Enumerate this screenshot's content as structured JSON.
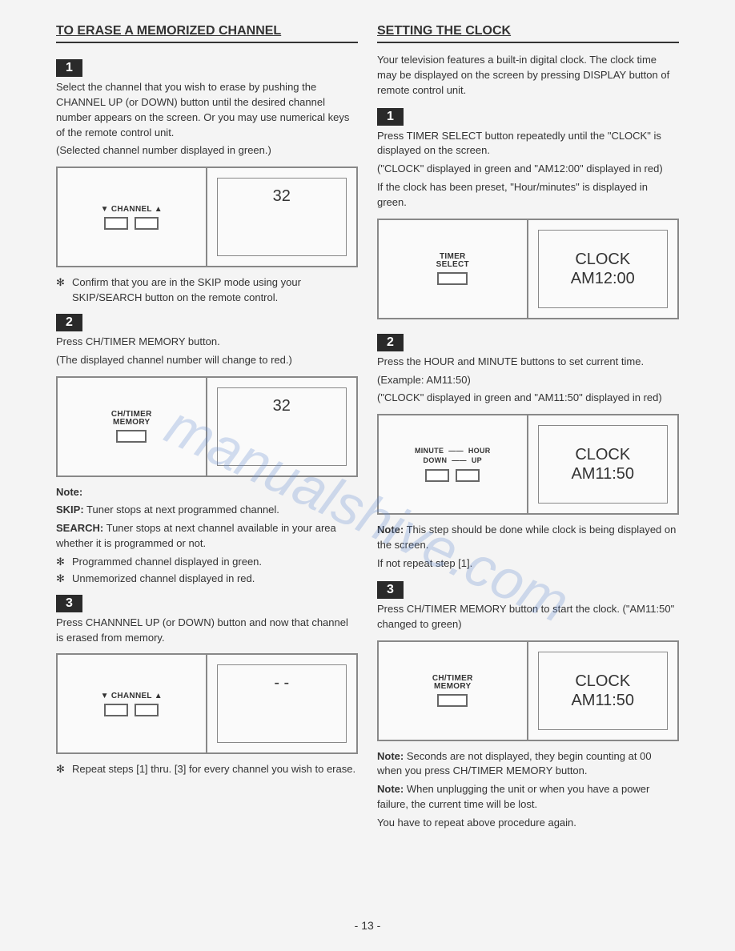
{
  "watermark": "manualshive.com",
  "page_number": "- 13 -",
  "left": {
    "heading": "TO ERASE A MEMORIZED CHANNEL",
    "step1": {
      "badge": "1",
      "text1": "Select the channel that you wish to erase by pushing the CHANNEL UP (or DOWN) button until the desired channel number appears on the screen. Or you may use numerical keys of the remote control unit.",
      "text2": "(Selected channel number displayed in green.)",
      "diagram": {
        "label": "▼ CHANNEL ▲",
        "value": "32"
      },
      "bullet": "Confirm that you are in the SKIP mode using your SKIP/SEARCH button on the remote control."
    },
    "step2": {
      "badge": "2",
      "text1": "Press CH/TIMER MEMORY button.",
      "text2": "(The displayed channel number will change to red.)",
      "diagram": {
        "label1": "CH/TIMER",
        "label2": "MEMORY",
        "value": "32"
      },
      "note_label": "Note:",
      "skip_label": "SKIP:",
      "skip_text": " Tuner stops at next programmed channel.",
      "search_label": "SEARCH:",
      "search_text": " Tuner stops at next channel available in your area whether it is programmed or not.",
      "bullet1": "Programmed channel displayed in green.",
      "bullet2": "Unmemorized channel displayed in red."
    },
    "step3": {
      "badge": "3",
      "text1": "Press CHANNNEL UP (or DOWN) button and now that channel is erased from memory.",
      "diagram": {
        "label": "▼ CHANNEL ▲",
        "value": "- -"
      },
      "bullet": "Repeat steps [1] thru. [3] for every channel you wish to erase."
    }
  },
  "right": {
    "heading": "SETTING THE CLOCK",
    "intro": "Your television features a built-in digital clock. The clock time may be displayed on the screen by pressing DISPLAY button of remote control unit.",
    "step1": {
      "badge": "1",
      "text1": "Press TIMER SELECT button repeatedly until the \"CLOCK\" is displayed on the screen.",
      "text2": "(\"CLOCK\" displayed in green and \"AM12:00\" displayed in red)",
      "text3": "If the clock has been preset, \"Hour/minutes\" is displayed in green.",
      "diagram": {
        "label1": "TIMER",
        "label2": "SELECT",
        "line1": "CLOCK",
        "line2": "AM12:00"
      }
    },
    "step2": {
      "badge": "2",
      "text1": "Press the HOUR and MINUTE buttons to set current time.",
      "text2": "(Example: AM11:50)",
      "text3": "(\"CLOCK\" displayed in green and \"AM11:50\" displayed in red)",
      "diagram": {
        "top_l": "MINUTE",
        "top_r": "HOUR",
        "bot_l": "DOWN",
        "bot_r": "UP",
        "line1": "CLOCK",
        "line2": "AM11:50"
      },
      "note_label": "Note:",
      "note_text": " This step should be done while clock is being displayed on the screen.",
      "note_text2": "If not repeat step [1]."
    },
    "step3": {
      "badge": "3",
      "text1": "Press CH/TIMER MEMORY button to start the clock. (\"AM11:50\" changed to green)",
      "diagram": {
        "label1": "CH/TIMER",
        "label2": "MEMORY",
        "line1": "CLOCK",
        "line2": "AM11:50"
      },
      "note1_label": "Note:",
      "note1_text": " Seconds are not displayed, they begin counting at 00 when you press CH/TIMER MEMORY button.",
      "note2_label": "Note:",
      "note2_text": " When unplugging the unit or when you have a power failure, the current time will be lost.",
      "note3": "You have to repeat above procedure again."
    }
  }
}
